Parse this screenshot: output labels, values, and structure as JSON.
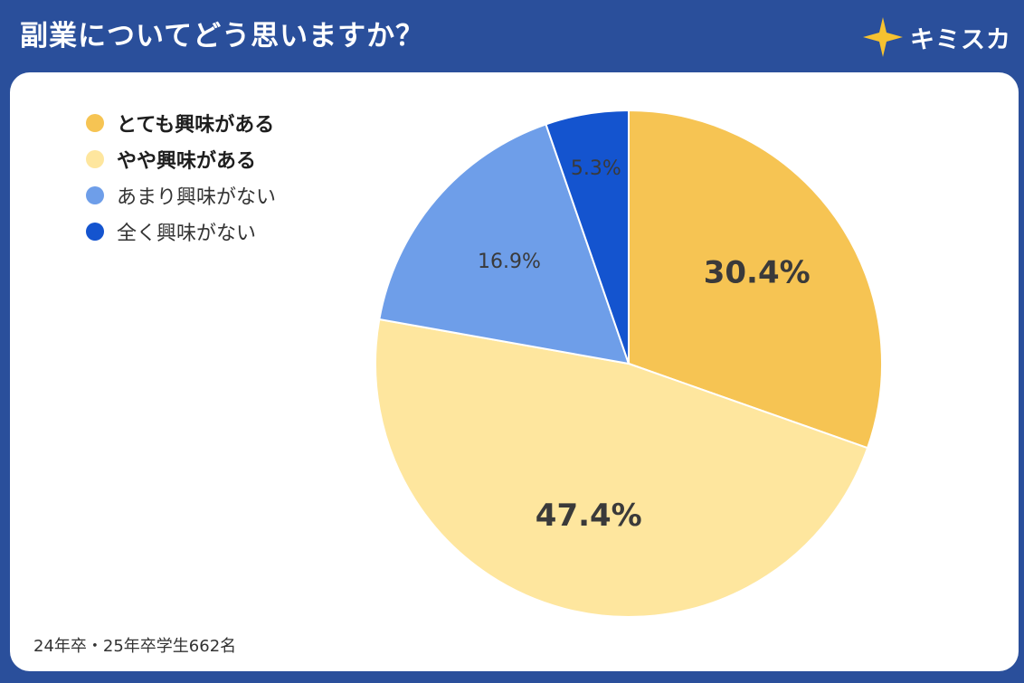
{
  "header": {
    "title": "副業についてどう思いますか？",
    "brand_name": "キミスカ",
    "brand_icon": "sparkle-star-icon",
    "brand_color": "#f6c230"
  },
  "chart_data": {
    "type": "pie",
    "title": "副業についてどう思いますか？",
    "start_angle_deg": 0,
    "direction": "clockwise",
    "legend_placement": "top-left",
    "slices": [
      {
        "label": "とても興味がある",
        "value": 30.4,
        "display": "30.4%",
        "color": "#f6c453",
        "emphasis": true
      },
      {
        "label": "やや興味がある",
        "value": 47.4,
        "display": "47.4%",
        "color": "#fee69e",
        "emphasis": true
      },
      {
        "label": "あまり興味がない",
        "value": 16.9,
        "display": "16.9%",
        "color": "#6e9ee9",
        "emphasis": false
      },
      {
        "label": "全く興味がない",
        "value": 5.3,
        "display": "5.3%",
        "color": "#1454cf",
        "emphasis": false
      }
    ]
  },
  "footnote": "24年卒・25年卒学生662名"
}
